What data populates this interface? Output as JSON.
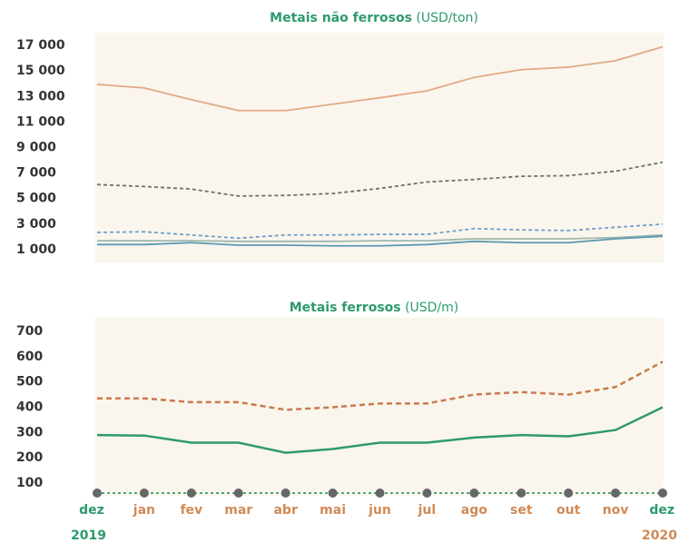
{
  "chart_data": [
    {
      "type": "line",
      "title": "Metais não ferrosos",
      "unit": "(USD/ton)",
      "ylim": [
        0,
        18000
      ],
      "yticks": [
        {
          "value": 1000,
          "label": "1 000"
        },
        {
          "value": 3000,
          "label": "3 000"
        },
        {
          "value": 5000,
          "label": "5 000"
        },
        {
          "value": 7000,
          "label": "7 000"
        },
        {
          "value": 9000,
          "label": "9 000"
        },
        {
          "value": 11000,
          "label": "11 000"
        },
        {
          "value": 13000,
          "label": "13 000"
        },
        {
          "value": 15000,
          "label": "15 000"
        },
        {
          "value": 17000,
          "label": "17 000"
        }
      ],
      "series": [
        {
          "color": "#e2a985",
          "dash": false,
          "values": [
            13950,
            13670,
            12750,
            11900,
            11900,
            12400,
            12900,
            13450,
            14500,
            15100,
            15300,
            15800,
            16900
          ]
        },
        {
          "color": "#6f6f6f",
          "dash": true,
          "values": [
            6100,
            5950,
            5750,
            5200,
            5250,
            5400,
            5800,
            6300,
            6500,
            6750,
            6800,
            7150,
            7850
          ]
        },
        {
          "color": "#6f9fc6",
          "dash": true,
          "values": [
            2350,
            2400,
            2150,
            1900,
            2150,
            2150,
            2200,
            2200,
            2650,
            2550,
            2500,
            2750,
            3000
          ]
        },
        {
          "color": "#9fb7ad",
          "dash": false,
          "values": [
            1700,
            1700,
            1700,
            1650,
            1650,
            1650,
            1700,
            1700,
            1850,
            1850,
            1850,
            1950,
            2150
          ]
        },
        {
          "color": "#5a9ab0",
          "dash": false,
          "values": [
            1400,
            1400,
            1550,
            1350,
            1350,
            1300,
            1300,
            1400,
            1650,
            1550,
            1550,
            1850,
            2050
          ]
        }
      ]
    },
    {
      "type": "line",
      "title": "Metais ferrosos",
      "unit": "(USD/m)",
      "ylim": [
        50,
        750
      ],
      "yticks": [
        100,
        200,
        300,
        400,
        500,
        600,
        700
      ],
      "categories": [
        "dez",
        "jan",
        "fev",
        "mar",
        "abr",
        "mai",
        "jun",
        "jul",
        "ago",
        "set",
        "out",
        "nov",
        "dez"
      ],
      "years": [
        "2019",
        "2020"
      ],
      "series": [
        {
          "color": "#c97b4c",
          "dash": true,
          "values": [
            435,
            435,
            420,
            420,
            390,
            400,
            415,
            415,
            450,
            460,
            450,
            480,
            580
          ]
        },
        {
          "color": "#2e9a6b",
          "dash": false,
          "values": [
            290,
            288,
            260,
            260,
            220,
            235,
            260,
            260,
            280,
            290,
            285,
            310,
            400
          ]
        }
      ]
    }
  ]
}
